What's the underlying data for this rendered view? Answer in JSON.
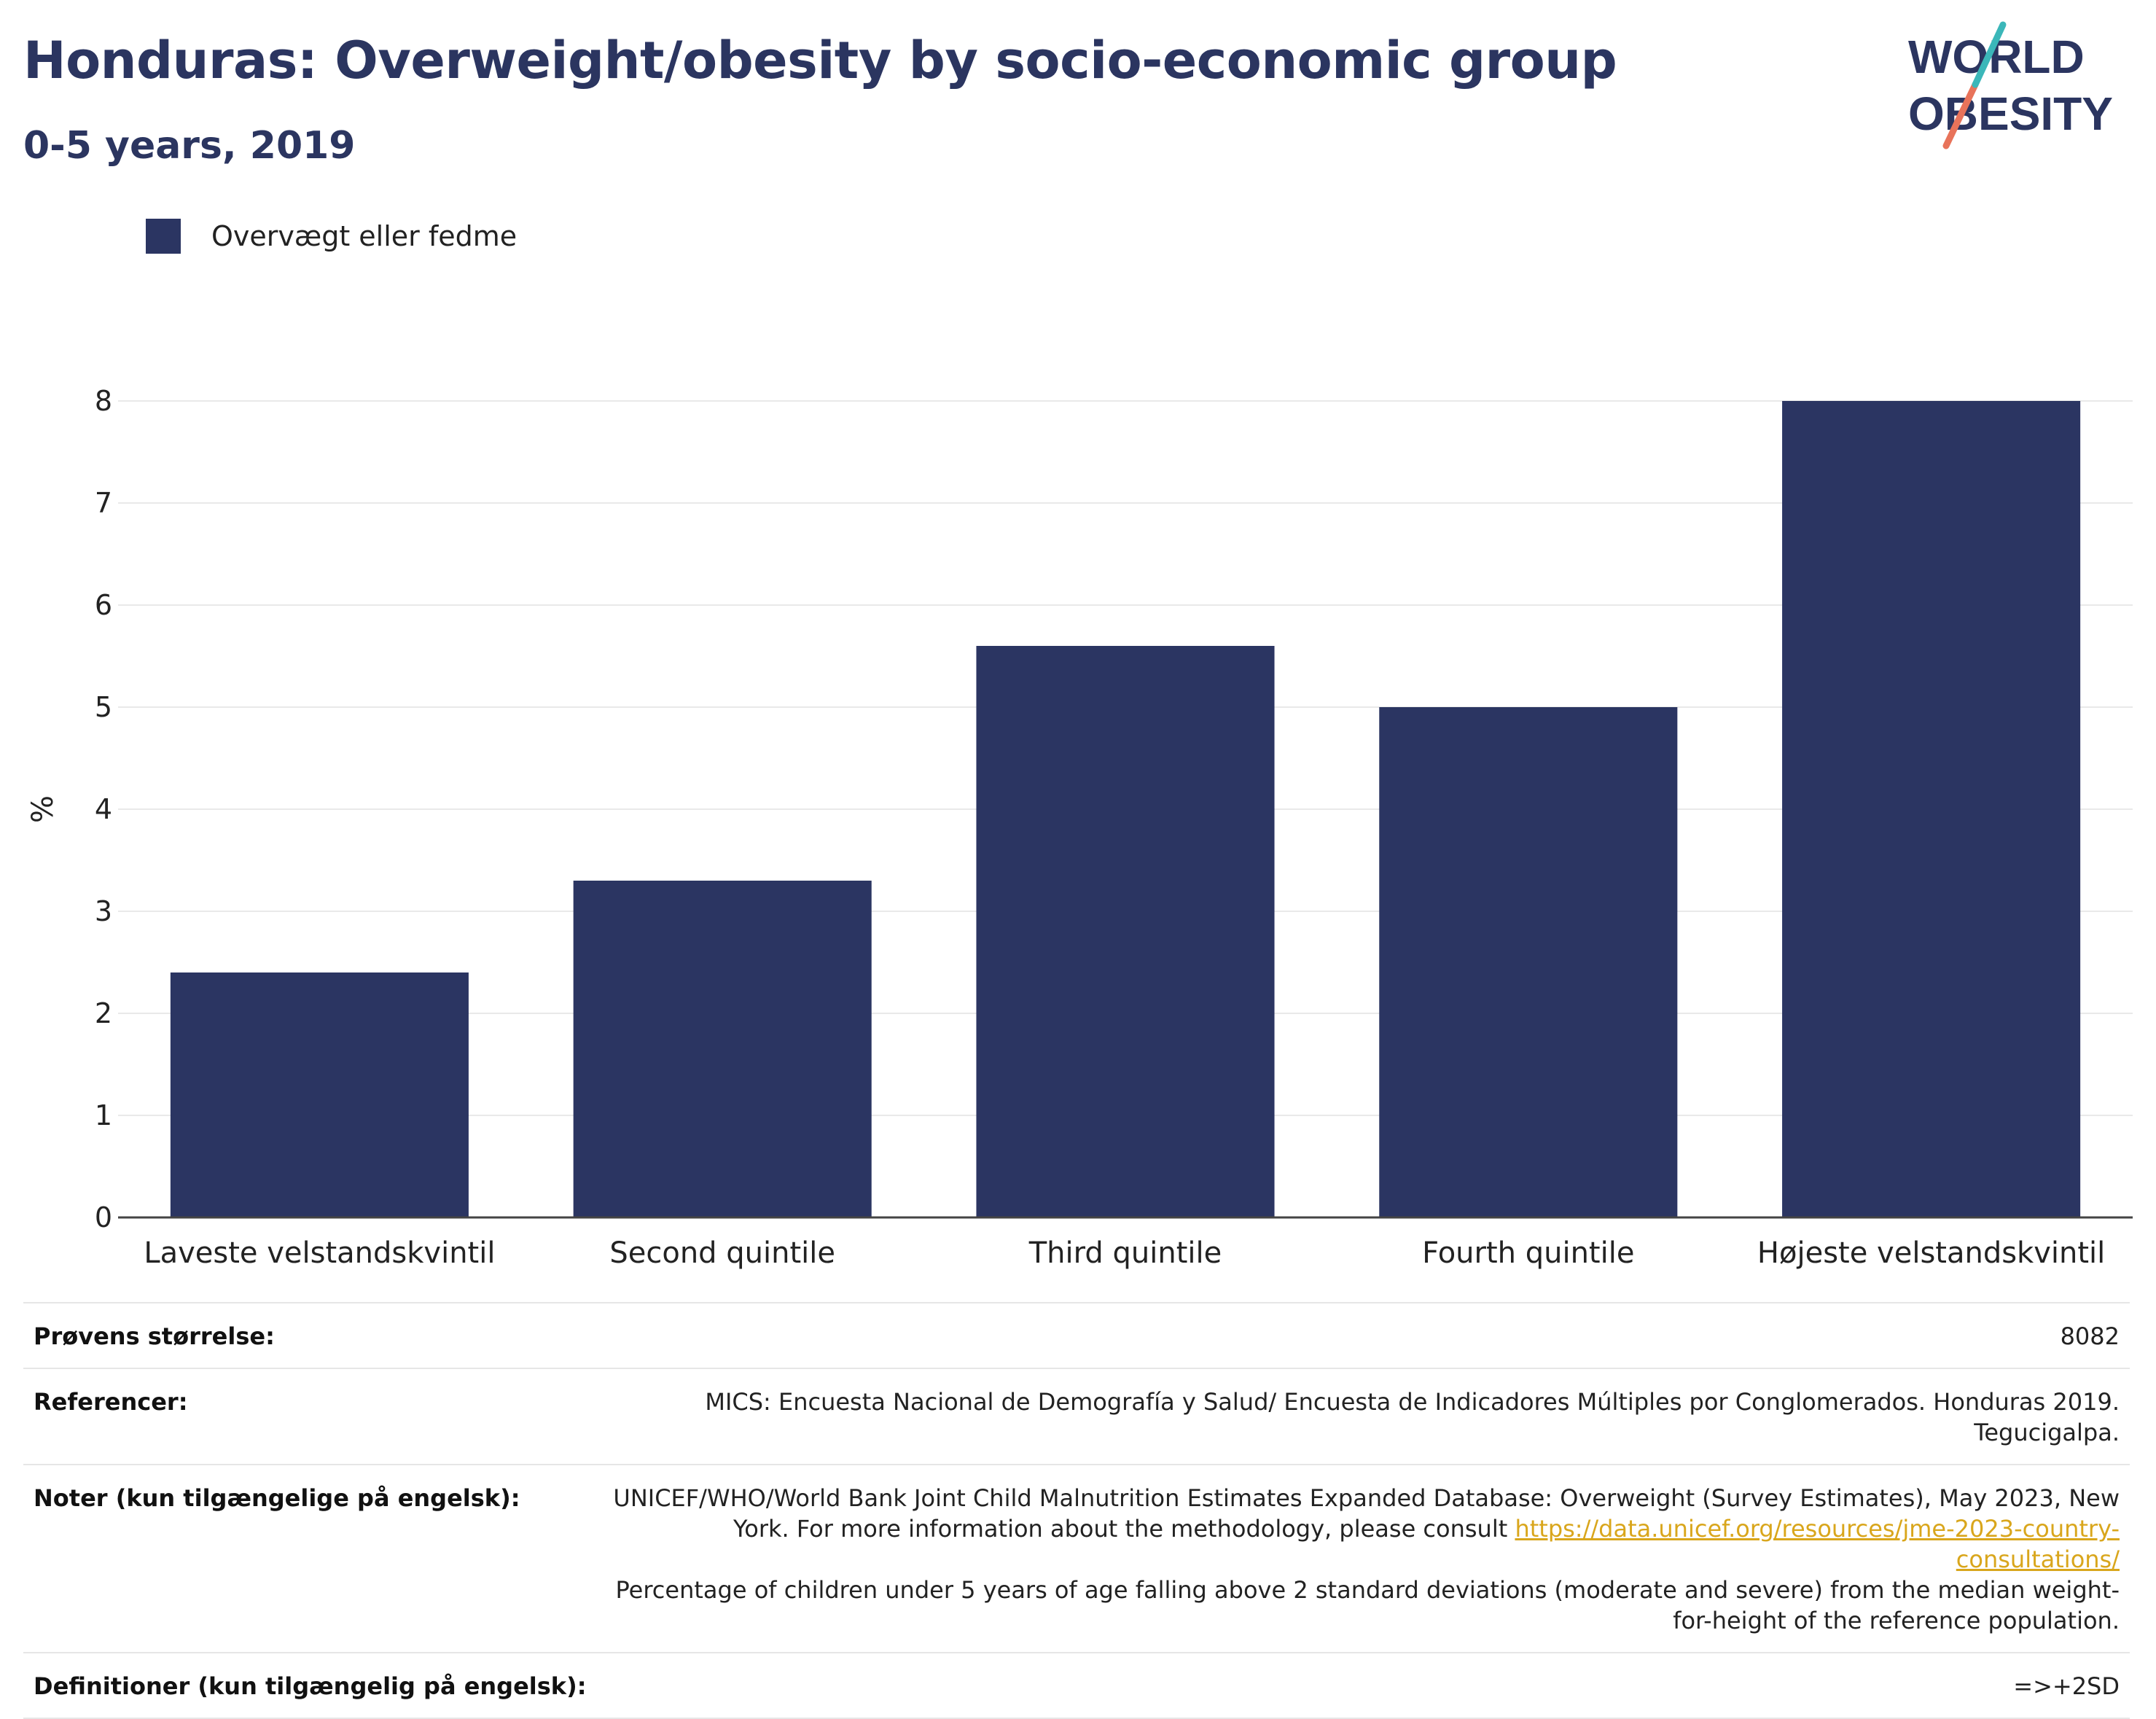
{
  "header": {
    "title": "Honduras: Overweight/obesity by socio-economic group",
    "subtitle": "0-5 years, 2019"
  },
  "logo": {
    "line1": "WORLD",
    "line2": "OBESITY"
  },
  "colors": {
    "bar": "#2b3562",
    "title": "#2b3560",
    "link": "#d9a61c"
  },
  "chart_data": {
    "type": "bar",
    "categories": [
      "Laveste velstandskvintil",
      "Second quintile",
      "Third quintile",
      "Fourth quintile",
      "Højeste velstandskvintil"
    ],
    "series": [
      {
        "name": "Overvægt eller fedme",
        "values": [
          2.4,
          3.3,
          5.6,
          5.0,
          8.0
        ]
      }
    ],
    "ylabel": "%",
    "ylim": [
      0,
      8
    ],
    "yticks": [
      0,
      1,
      2,
      3,
      4,
      5,
      6,
      7,
      8
    ],
    "grid": true,
    "legend": "top-left"
  },
  "meta": {
    "sample_label": "Prøvens størrelse:",
    "sample_value": "8082",
    "refs_label": "Referencer:",
    "refs_value": "MICS: Encuesta Nacional de Demografía y Salud/ Encuesta de Indicadores Múltiples por Conglomerados. Honduras 2019. Tegucigalpa.",
    "notes_label": "Noter (kun tilgængelige på engelsk):",
    "notes_text_1": "UNICEF/WHO/World Bank Joint Child Malnutrition Estimates Expanded Database: Overweight (Survey Estimates), May 2023, New York. For more information about the methodology, please consult",
    "notes_link": "https://data.unicef.org/resources/jme-2023-country-consultations/",
    "notes_text_2": "Percentage of children under 5 years of age falling above 2 standard deviations (moderate and severe) from the median weight-for-height of the reference population.",
    "defs_label": "Definitioner (kun tilgængelig på engelsk):",
    "defs_value": "=>+2SD"
  }
}
